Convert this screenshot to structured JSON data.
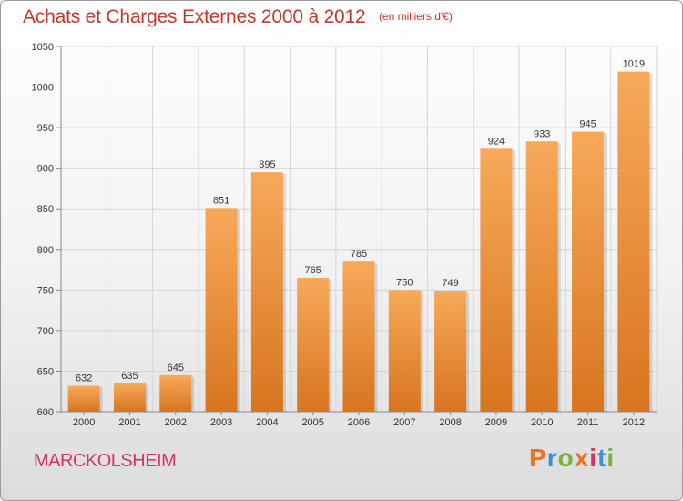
{
  "header": {
    "title": "Achats et Charges Externes 2000 à 2012",
    "unit": "(en milliers d'€)"
  },
  "footer": {
    "commune": "MARCKOLSHEIM",
    "brand": "Proxiti",
    "brand_colors": [
      "#e8732a",
      "#3b8fd4",
      "#7bb33a",
      "#e8732a",
      "#d0346f",
      "#3b8fd4",
      "#7bb33a"
    ]
  },
  "colors": {
    "bar_top": "#f7a95a",
    "bar_bottom": "#d8751f",
    "title": "#c0392b",
    "grid": "#d6d6d6"
  },
  "chart_data": {
    "type": "bar",
    "title": "Achats et Charges Externes 2000 à 2012",
    "xlabel": "",
    "ylabel": "",
    "categories": [
      "2000",
      "2001",
      "2002",
      "2003",
      "2004",
      "2005",
      "2006",
      "2007",
      "2008",
      "2009",
      "2010",
      "2011",
      "2012"
    ],
    "values": [
      632,
      635,
      645,
      851,
      895,
      765,
      785,
      750,
      749,
      924,
      933,
      945,
      1019
    ],
    "ylim": [
      600,
      1050
    ],
    "yticks": [
      600,
      650,
      700,
      750,
      800,
      850,
      900,
      950,
      1000,
      1050
    ],
    "grid": true
  }
}
